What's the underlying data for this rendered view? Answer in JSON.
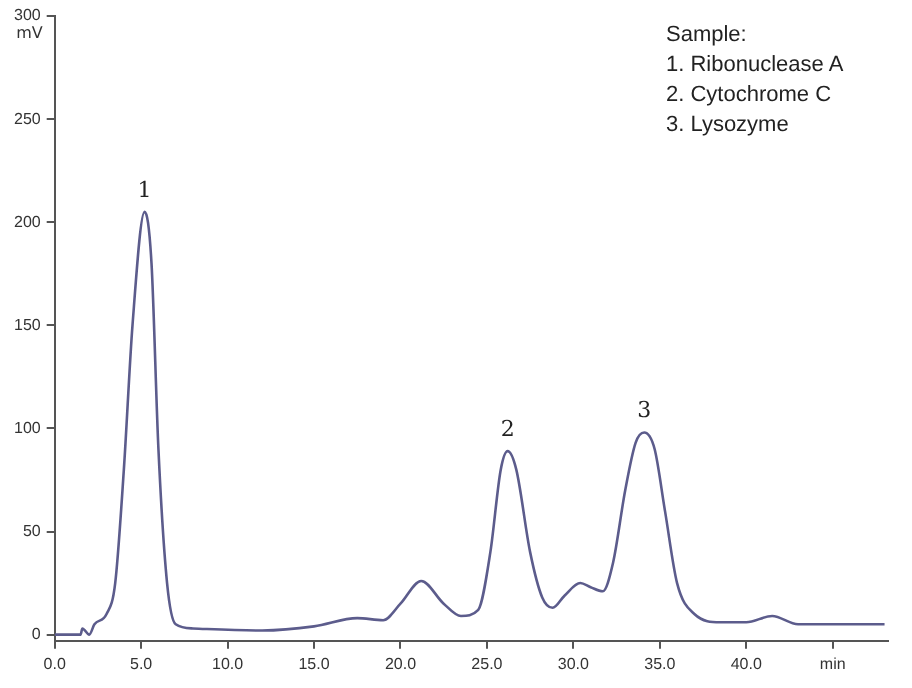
{
  "chart_data": {
    "type": "line",
    "ylabel": "mV",
    "x": [
      0,
      1.5,
      1.6,
      2.0,
      2.3,
      3,
      3.5,
      4,
      4.5,
      5.2,
      5.6,
      6.0,
      6.5,
      7,
      8,
      12,
      15,
      17.5,
      19,
      20,
      21.2,
      22.5,
      23.5,
      24.5,
      25.2,
      25.8,
      26.2,
      26.7,
      27.5,
      28.2,
      28.8,
      29.5,
      30.4,
      31,
      31.7,
      32.3,
      33,
      33.6,
      34.1,
      34.7,
      35.3,
      36,
      37,
      38.5,
      40,
      41.5,
      43,
      45,
      48
    ],
    "series": [
      {
        "color": "#5c5c8c",
        "values": [
          0,
          0,
          3,
          0,
          5,
          10,
          25,
          80,
          150,
          205,
          180,
          90,
          25,
          5,
          3,
          2,
          4,
          8,
          7,
          15,
          26,
          15,
          9,
          12,
          40,
          80,
          89,
          80,
          40,
          18,
          13,
          19,
          25,
          23,
          21,
          35,
          70,
          93,
          98,
          90,
          60,
          25,
          10,
          6,
          6,
          9,
          5,
          5,
          5
        ]
      }
    ],
    "xlim": [
      0,
      48.2
    ],
    "xticks": [
      {
        "value": 0,
        "label": "0.0"
      },
      {
        "value": 5,
        "label": "5.0"
      },
      {
        "value": 10,
        "label": "10.0"
      },
      {
        "value": 15,
        "label": "15.0"
      },
      {
        "value": 20,
        "label": "20.0"
      },
      {
        "value": 25,
        "label": "25.0"
      },
      {
        "value": 30,
        "label": "30.0"
      },
      {
        "value": 35,
        "label": "35.0"
      },
      {
        "value": 40,
        "label": "40.0"
      },
      {
        "value": 45,
        "label": "min"
      }
    ],
    "ylim": [
      -3,
      300
    ],
    "yticks": [
      0,
      50,
      100,
      150,
      200,
      250,
      300
    ],
    "grid": false,
    "legend": false,
    "marker": "none",
    "line_style": "solid",
    "annotations": [
      {
        "text": "1",
        "x": 5.2,
        "y": 205
      },
      {
        "text": "2",
        "x": 26.2,
        "y": 89
      },
      {
        "text": "3",
        "x": 34.1,
        "y": 98
      },
      "Sample:\n1. Ribonuclease A\n2. Cytochrome C\n3. Lysozyme"
    ]
  }
}
